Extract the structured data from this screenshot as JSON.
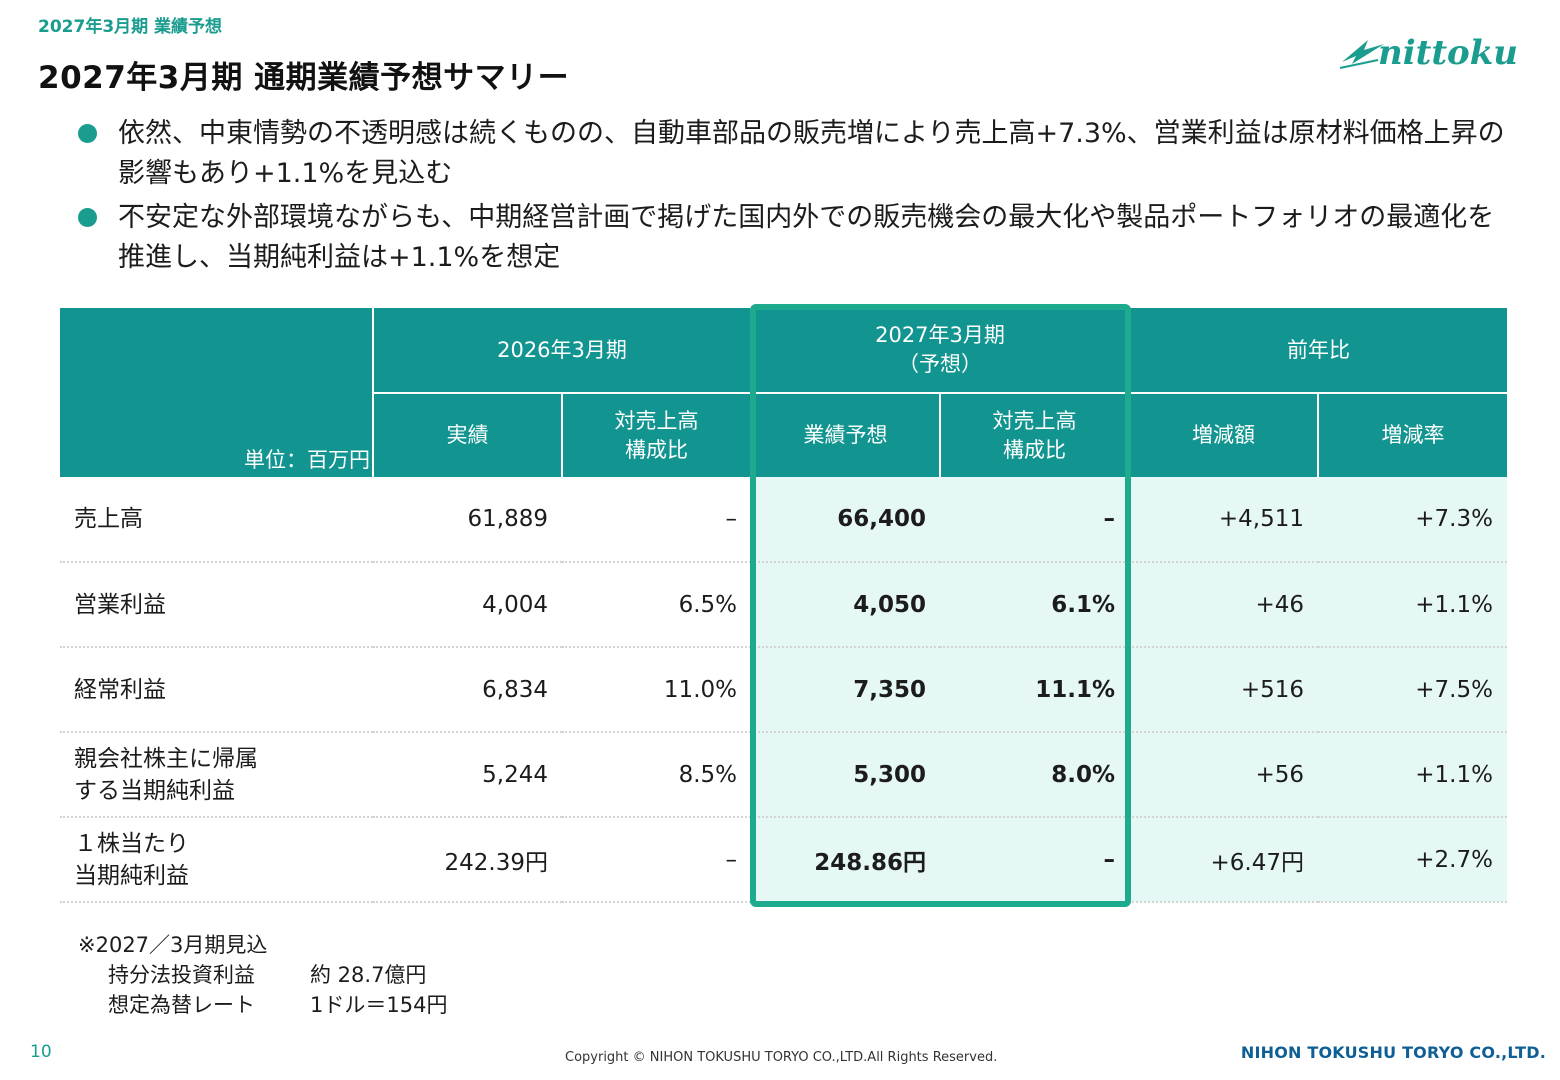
{
  "header": {
    "breadcrumb": "2027年3月期 業績予想",
    "title": "2027年3月期 通期業績予想サマリー",
    "logo_text": "nittoku"
  },
  "bullets": [
    "依然、中東情勢の不透明感は続くものの、自動車部品の販売増により売上高+7.3%、営業利益は原材料価格上昇の影響もあり+1.1%を見込む",
    "不安定な外部環境ながらも、中期経営計画で掲げた国内外での販売機会の最大化や製品ポートフォリオの最適化を推進し、当期純利益は+1.1%を想定"
  ],
  "table": {
    "unit_label": "単位：百万円",
    "group_headers": {
      "fy2026": "2026年3月期",
      "fy2027_line1": "2027年3月期",
      "fy2027_line2": "（予想）",
      "yoy": "前年比"
    },
    "sub_headers": {
      "actual": "実績",
      "ratio_line1": "対売上高",
      "ratio_line2": "構成比",
      "forecast": "業績予想",
      "change_amount": "増減額",
      "change_rate": "増減率"
    },
    "rows": [
      {
        "label_line1": "売上高",
        "label_line2": "",
        "actual": "61,889",
        "actual_ratio": "–",
        "forecast": "66,400",
        "forecast_ratio": "–",
        "change": "+4,511",
        "rate": "+7.3%"
      },
      {
        "label_line1": "営業利益",
        "label_line2": "",
        "actual": "4,004",
        "actual_ratio": "6.5%",
        "forecast": "4,050",
        "forecast_ratio": "6.1%",
        "change": "+46",
        "rate": "+1.1%"
      },
      {
        "label_line1": "経常利益",
        "label_line2": "",
        "actual": "6,834",
        "actual_ratio": "11.0%",
        "forecast": "7,350",
        "forecast_ratio": "11.1%",
        "change": "+516",
        "rate": "+7.5%"
      },
      {
        "label_line1": "親会社株主に帰属",
        "label_line2": "する当期純利益",
        "actual": "5,244",
        "actual_ratio": "8.5%",
        "forecast": "5,300",
        "forecast_ratio": "8.0%",
        "change": "+56",
        "rate": "+1.1%"
      },
      {
        "label_line1": "１株当たり",
        "label_line2": "当期純利益",
        "actual": "242.39円",
        "actual_ratio": "–",
        "forecast": "248.86円",
        "forecast_ratio": "–",
        "change": "+6.47円",
        "rate": "+2.7%"
      }
    ]
  },
  "notes": {
    "heading": "※2027／3月期見込",
    "items": [
      {
        "label": "持分法投資利益",
        "value": "約 28.7億円"
      },
      {
        "label": "想定為替レート",
        "value": "1ドル＝154円"
      }
    ]
  },
  "footer": {
    "page_number": "10",
    "copyright": "Copyright © NIHON TOKUSHU TORYO CO.,LTD.All Rights Reserved.",
    "company": "NIHON TOKUSHU TORYO CO.,LTD."
  },
  "colors": {
    "accent": "#1a9c8f",
    "header_fill": "#129590",
    "highlight_frame": "#1eaa8c",
    "highlight_fill": "#e6f8f6",
    "company_text": "#0e5f95"
  }
}
